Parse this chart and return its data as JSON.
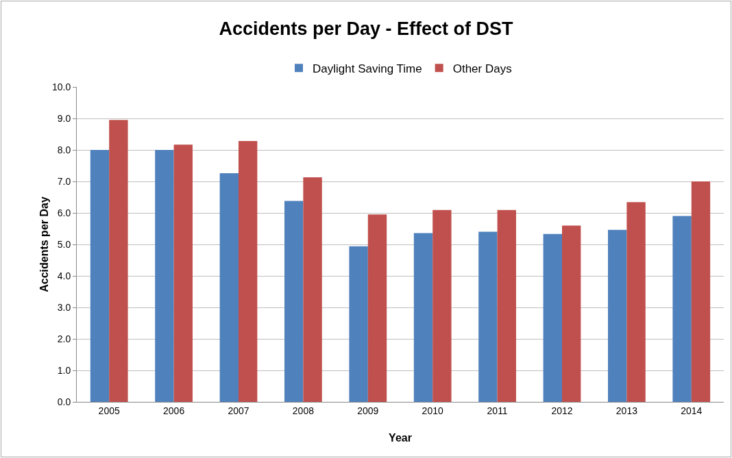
{
  "chart_data": {
    "type": "bar",
    "title": "Accidents per Day - Effect of DST",
    "xlabel": "Year",
    "ylabel": "Accidents per Day",
    "categories": [
      "2005",
      "2006",
      "2007",
      "2008",
      "2009",
      "2010",
      "2011",
      "2012",
      "2013",
      "2014"
    ],
    "series": [
      {
        "name": "Daylight Saving Time",
        "color": "#4f81bd",
        "values": [
          8.0,
          8.0,
          7.26,
          6.38,
          4.94,
          5.36,
          5.4,
          5.33,
          5.46,
          5.9
        ]
      },
      {
        "name": "Other Days",
        "color": "#c0504d",
        "values": [
          8.95,
          8.17,
          8.28,
          7.13,
          5.95,
          6.09,
          6.09,
          5.6,
          6.34,
          7.0
        ]
      }
    ],
    "ylim": [
      0,
      10
    ],
    "yticks": [
      {
        "value": 0,
        "label": "0.0"
      },
      {
        "value": 1,
        "label": "1.0"
      },
      {
        "value": 2,
        "label": "2.0"
      },
      {
        "value": 3,
        "label": "3.0"
      },
      {
        "value": 4,
        "label": "4.0"
      },
      {
        "value": 5,
        "label": "5.0"
      },
      {
        "value": 6,
        "label": "6.0"
      },
      {
        "value": 7,
        "label": "7.0"
      },
      {
        "value": 8,
        "label": "8.0"
      },
      {
        "value": 9,
        "label": "9.0"
      },
      {
        "value": 10,
        "label": "10.0"
      }
    ],
    "grid": "y",
    "legend": "top"
  }
}
